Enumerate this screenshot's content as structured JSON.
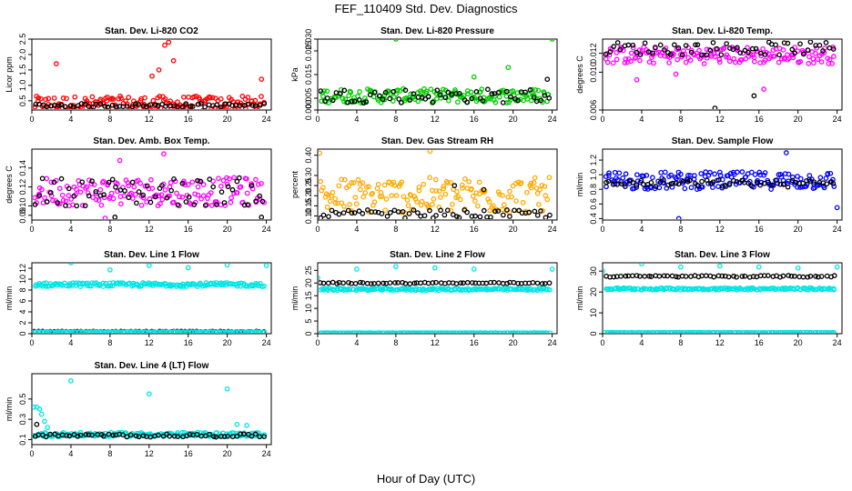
{
  "figure": {
    "title": "FEF_110409  Std. Dev. Diagnostics",
    "xlabel": "Hour of Day (UTC)"
  },
  "chart_data": [
    {
      "type": "scatter",
      "title": "Stan. Dev. Li-820 CO2",
      "ylabel": "Licor ppm",
      "xlim": [
        0,
        24.5
      ],
      "ylim": [
        0.2,
        2.5
      ],
      "xticks": [
        "0",
        "4",
        "8",
        "12",
        "16",
        "20",
        "24"
      ],
      "yticks": [
        "0.5",
        "1.0",
        "1.5",
        "2.0",
        "2.5"
      ],
      "yticks_values": [
        0.5,
        1.0,
        1.5,
        2.0,
        2.5
      ],
      "series": [
        {
          "color": "#ff0000",
          "base": 0.4,
          "spread": 0.25,
          "high_points": [
            [
              13.6,
              2.3
            ],
            [
              14.0,
              2.4
            ],
            [
              2.5,
              1.7
            ],
            [
              13.0,
              1.5
            ],
            [
              14.5,
              1.8
            ],
            [
              23.5,
              1.2
            ],
            [
              12.3,
              1.3
            ]
          ]
        },
        {
          "color": "#000000",
          "base": 0.35,
          "spread": 0.06,
          "high_points": []
        }
      ]
    },
    {
      "type": "scatter",
      "title": "Stan. Dev. Li-820 Pressure",
      "ylabel": "kPa",
      "xlim": [
        0,
        24.5
      ],
      "ylim": [
        0.0,
        0.03
      ],
      "xticks": [
        "0",
        "4",
        "8",
        "12",
        "16",
        "20",
        "24"
      ],
      "yticks": [
        "0.000",
        "0.005",
        "0.015",
        "0.025",
        "0.030"
      ],
      "yticks_values": [
        0.0,
        0.005,
        0.015,
        0.025,
        0.03
      ],
      "series": [
        {
          "color": "#00cc00",
          "base": 0.006,
          "spread": 0.003,
          "high_points": [
            [
              8.0,
              0.03
            ],
            [
              24.0,
              0.03
            ],
            [
              19.5,
              0.018
            ],
            [
              16.0,
              0.014
            ]
          ]
        },
        {
          "color": "#000000",
          "base": 0.006,
          "spread": 0.003,
          "high_points": [
            [
              23.5,
              0.013
            ]
          ]
        }
      ]
    },
    {
      "type": "scatter",
      "title": "Stan. Dev. Li-820 Temp.",
      "ylabel": "degrees C",
      "xlim": [
        0,
        24.5
      ],
      "ylim": [
        0.006,
        0.0135
      ],
      "xticks": [
        "0",
        "4",
        "8",
        "12",
        "16",
        "20",
        "24"
      ],
      "yticks": [
        "0.006",
        "0.010",
        "0.012"
      ],
      "yticks_values": [
        0.006,
        0.01,
        0.012
      ],
      "series": [
        {
          "color": "#ff00ff",
          "base": 0.0118,
          "spread": 0.0009,
          "high_points": [
            [
              3.5,
              0.0092
            ],
            [
              7.5,
              0.0098
            ],
            [
              16.5,
              0.0082
            ]
          ]
        },
        {
          "color": "#000000",
          "base": 0.0125,
          "spread": 0.0007,
          "high_points": [
            [
              11.5,
              0.0062
            ],
            [
              15.5,
              0.0075
            ]
          ]
        }
      ]
    },
    {
      "type": "scatter",
      "title": "Stan. Dev. Amb. Box Temp.",
      "ylabel": "degrees C",
      "xlim": [
        0,
        24.5
      ],
      "ylim": [
        0.085,
        0.16
      ],
      "xticks": [
        "0",
        "4",
        "8",
        "12",
        "16",
        "20",
        "24"
      ],
      "yticks": [
        "0.09",
        "0.10",
        "0.12",
        "0.14"
      ],
      "yticks_values": [
        0.09,
        0.1,
        0.12,
        0.14
      ],
      "series": [
        {
          "color": "#ff00ff",
          "base": 0.115,
          "spread": 0.015,
          "high_points": [
            [
              13.5,
              0.155
            ],
            [
              9.0,
              0.148
            ],
            [
              7.5,
              0.087
            ]
          ]
        },
        {
          "color": "#000000",
          "base": 0.115,
          "spread": 0.015,
          "high_points": [
            [
              8.5,
              0.088
            ],
            [
              23.5,
              0.088
            ]
          ]
        }
      ]
    },
    {
      "type": "scatter",
      "title": "Stan. Dev. Gas Stream RH",
      "ylabel": "percent",
      "xlim": [
        0,
        24.5
      ],
      "ylim": [
        0.08,
        0.43
      ],
      "xticks": [
        "0",
        "4",
        "8",
        "12",
        "16",
        "20",
        "24"
      ],
      "yticks": [
        "0.10",
        "0.15",
        "0.20",
        "0.25",
        "0.30",
        "0.40"
      ],
      "yticks_values": [
        0.1,
        0.15,
        0.2,
        0.25,
        0.3,
        0.4
      ],
      "series": [
        {
          "color": "#ffaa00",
          "base": 0.2,
          "spread": 0.09,
          "high_points": [
            [
              0.2,
              0.41
            ],
            [
              11.5,
              0.42
            ]
          ]
        },
        {
          "color": "#000000",
          "base": 0.11,
          "spread": 0.02,
          "high_points": [
            [
              14.0,
              0.25
            ],
            [
              17.0,
              0.23
            ]
          ]
        }
      ]
    },
    {
      "type": "scatter",
      "title": "Stan. Dev. Sample Flow",
      "ylabel": "ml/min",
      "xlim": [
        0,
        24.5
      ],
      "ylim": [
        0.38,
        1.35
      ],
      "xticks": [
        "0",
        "4",
        "8",
        "12",
        "16",
        "20",
        "24"
      ],
      "yticks": [
        "0.4",
        "0.6",
        "0.8",
        "1.0",
        "1.2"
      ],
      "yticks_values": [
        0.4,
        0.6,
        0.8,
        1.0,
        1.2
      ],
      "series": [
        {
          "color": "#0000ff",
          "base": 0.92,
          "spread": 0.12,
          "high_points": [
            [
              7.8,
              0.4
            ],
            [
              18.8,
              1.3
            ],
            [
              24.0,
              0.55
            ]
          ]
        },
        {
          "color": "#000000",
          "base": 0.88,
          "spread": 0.05,
          "high_points": []
        }
      ]
    },
    {
      "type": "scatter",
      "title": "Stan. Dev. Line 1 Flow",
      "ylabel": "ml/min",
      "xlim": [
        0,
        24.5
      ],
      "ylim": [
        0,
        13
      ],
      "xticks": [
        "0",
        "4",
        "8",
        "12",
        "16",
        "20",
        "24"
      ],
      "yticks": [
        "0",
        "2",
        "4",
        "6",
        "8",
        "10",
        "12"
      ],
      "yticks_values": [
        0,
        2,
        4,
        6,
        8,
        10,
        12
      ],
      "series": [
        {
          "color": "#00e5e5",
          "base": 9.0,
          "spread": 0.35,
          "high_points": [
            [
              4.0,
              13.0
            ],
            [
              8.0,
              11.7
            ],
            [
              12.0,
              12.5
            ],
            [
              16.0,
              12.1
            ],
            [
              20.0,
              12.6
            ],
            [
              24.0,
              12.5
            ]
          ]
        },
        {
          "color": "#000000",
          "base": 0.4,
          "spread": 0.05,
          "high_points": []
        },
        {
          "color": "#00e5e5",
          "base": 0.3,
          "spread": 0.05,
          "high_points": []
        }
      ]
    },
    {
      "type": "scatter",
      "title": "Stan. Dev. Line 2 Flow",
      "ylabel": "ml/min",
      "xlim": [
        0,
        24.5
      ],
      "ylim": [
        0,
        28
      ],
      "xticks": [
        "0",
        "4",
        "8",
        "12",
        "16",
        "20",
        "24"
      ],
      "yticks": [
        "0",
        "5",
        "10",
        "15",
        "20",
        "25"
      ],
      "yticks_values": [
        0,
        5,
        10,
        15,
        20,
        25
      ],
      "series": [
        {
          "color": "#00e5e5",
          "base": 17.5,
          "spread": 0.4,
          "high_points": [
            [
              0.0,
              22.0
            ],
            [
              4.0,
              25.5
            ],
            [
              8.0,
              26.5
            ],
            [
              12.0,
              26.0
            ],
            [
              16.0,
              25.5
            ],
            [
              24.0,
              25.5
            ]
          ]
        },
        {
          "color": "#000000",
          "base": 20.0,
          "spread": 0.3,
          "high_points": []
        },
        {
          "color": "#00e5e5",
          "base": 0.3,
          "spread": 0.05,
          "high_points": []
        }
      ]
    },
    {
      "type": "scatter",
      "title": "Stan. Dev. Line 3 Flow",
      "ylabel": "ml/min",
      "xlim": [
        0,
        24.5
      ],
      "ylim": [
        0,
        34
      ],
      "xticks": [
        "0",
        "4",
        "8",
        "12",
        "16",
        "20",
        "24"
      ],
      "yticks": [
        "0",
        "10",
        "20",
        "30"
      ],
      "yticks_values": [
        0,
        10,
        20,
        30
      ],
      "series": [
        {
          "color": "#00e5e5",
          "base": 21.5,
          "spread": 0.5,
          "high_points": [
            [
              0.0,
              30.0
            ],
            [
              4.0,
              33.5
            ],
            [
              8.0,
              32.0
            ],
            [
              12.0,
              32.5
            ],
            [
              16.0,
              32.0
            ],
            [
              20.0,
              31.5
            ],
            [
              24.0,
              32.0
            ]
          ]
        },
        {
          "color": "#000000",
          "base": 27.5,
          "spread": 0.4,
          "high_points": []
        },
        {
          "color": "#00e5e5",
          "base": 0.5,
          "spread": 0.08,
          "high_points": []
        }
      ]
    },
    {
      "type": "scatter",
      "title": "Stan. Dev. Line 4 (LT) Flow",
      "ylabel": "ml/min",
      "xlim": [
        0,
        24.5
      ],
      "ylim": [
        0.05,
        0.75
      ],
      "xticks": [
        "0",
        "4",
        "8",
        "12",
        "16",
        "20",
        "24"
      ],
      "yticks": [
        "0.1",
        "0.3",
        "0.5"
      ],
      "yticks_values": [
        0.1,
        0.3,
        0.5
      ],
      "series": [
        {
          "color": "#00e5e5",
          "base": 0.15,
          "spread": 0.02,
          "high_points": [
            [
              0.2,
              0.42
            ],
            [
              0.5,
              0.42
            ],
            [
              0.8,
              0.4
            ],
            [
              1.0,
              0.35
            ],
            [
              1.3,
              0.28
            ],
            [
              1.6,
              0.22
            ],
            [
              4.0,
              0.68
            ],
            [
              12.0,
              0.55
            ],
            [
              20.0,
              0.6
            ],
            [
              21.0,
              0.25
            ],
            [
              22.0,
              0.24
            ]
          ]
        },
        {
          "color": "#000000",
          "base": 0.14,
          "spread": 0.015,
          "high_points": [
            [
              0.5,
              0.25
            ]
          ]
        }
      ]
    }
  ]
}
